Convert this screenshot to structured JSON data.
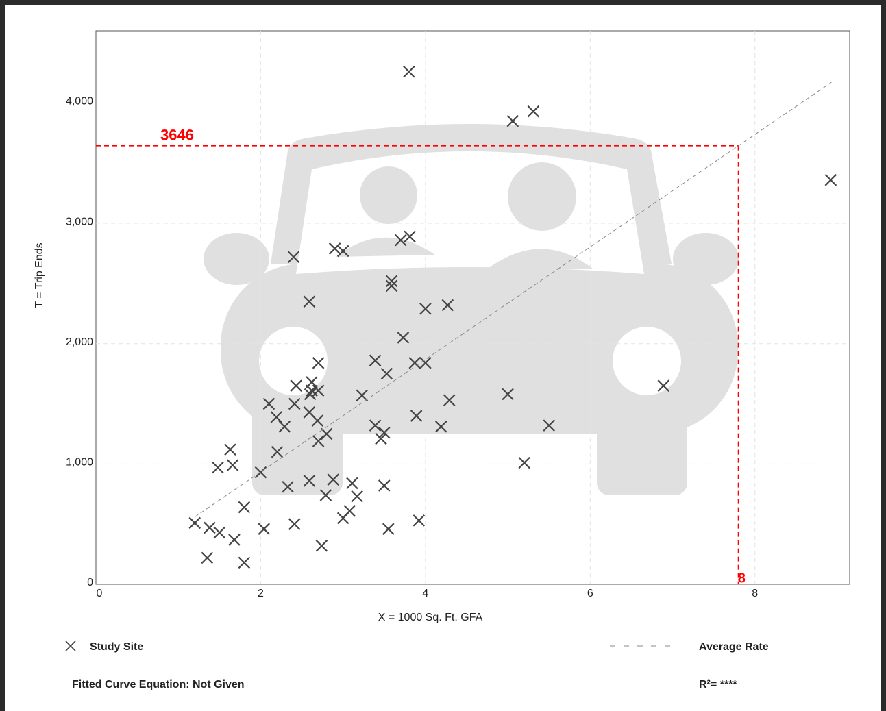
{
  "chart_data": {
    "type": "scatter",
    "xlabel": "X = 1000 Sq. Ft. GFA",
    "ylabel": "T = Trip Ends",
    "xlim": [
      0,
      9.15
    ],
    "ylim": [
      0,
      4600
    ],
    "xticks": [
      0,
      2,
      4,
      6,
      8
    ],
    "yticks": [
      0,
      {
        "value": 1000,
        "label": "1,000"
      },
      {
        "value": 2000,
        "label": "2,000"
      },
      {
        "value": 3000,
        "label": "3,000"
      },
      {
        "value": 4000,
        "label": "4,000"
      }
    ],
    "grid": true,
    "series": [
      {
        "name": "Study Site",
        "color": "#444444",
        "marker": "x",
        "x": [
          3.8,
          5.06,
          5.31,
          8.92,
          2.4,
          2.9,
          3.0,
          3.7,
          3.81,
          3.59,
          3.59,
          2.59,
          4.0,
          4.27,
          3.73,
          2.7,
          3.39,
          3.87,
          4.0,
          3.53,
          2.43,
          2.62,
          2.62,
          2.7,
          2.6,
          3.23,
          5.0,
          4.29,
          6.89,
          2.1,
          2.41,
          2.59,
          2.19,
          2.69,
          2.29,
          3.89,
          3.39,
          4.19,
          5.5,
          2.8,
          2.7,
          3.5,
          3.46,
          1.63,
          2.2,
          1.48,
          1.66,
          5.2,
          2.0,
          2.88,
          2.59,
          2.33,
          3.11,
          3.5,
          2.79,
          3.17,
          1.8,
          3.08,
          3.0,
          1.2,
          1.38,
          1.5,
          2.04,
          2.41,
          3.55,
          3.92,
          1.68,
          2.74,
          1.35,
          1.8
        ],
        "values": [
          4260,
          3850,
          3930,
          3360,
          2720,
          2790,
          2770,
          2860,
          2890,
          2520,
          2480,
          2350,
          2290,
          2320,
          2050,
          1840,
          1860,
          1840,
          1840,
          1750,
          1650,
          1680,
          1610,
          1610,
          1580,
          1570,
          1580,
          1530,
          1650,
          1500,
          1500,
          1430,
          1390,
          1360,
          1310,
          1400,
          1320,
          1310,
          1320,
          1250,
          1190,
          1260,
          1210,
          1120,
          1100,
          970,
          990,
          1010,
          930,
          870,
          860,
          810,
          840,
          820,
          740,
          730,
          640,
          610,
          550,
          510,
          470,
          430,
          460,
          500,
          460,
          530,
          370,
          320,
          220,
          180
        ]
      },
      {
        "name": "Average Rate",
        "color": "#888888",
        "type": "line",
        "dashed": true,
        "x": [
          1.2,
          8.93
        ],
        "values": [
          560,
          4173
        ]
      }
    ],
    "annotation": {
      "x": {
        "value": 7.8,
        "label": "8"
      },
      "y": 3646,
      "color": "#ff0000"
    },
    "footnotes": [
      "Fitted Curve Equation: Not Given",
      "R²= ****"
    ]
  }
}
